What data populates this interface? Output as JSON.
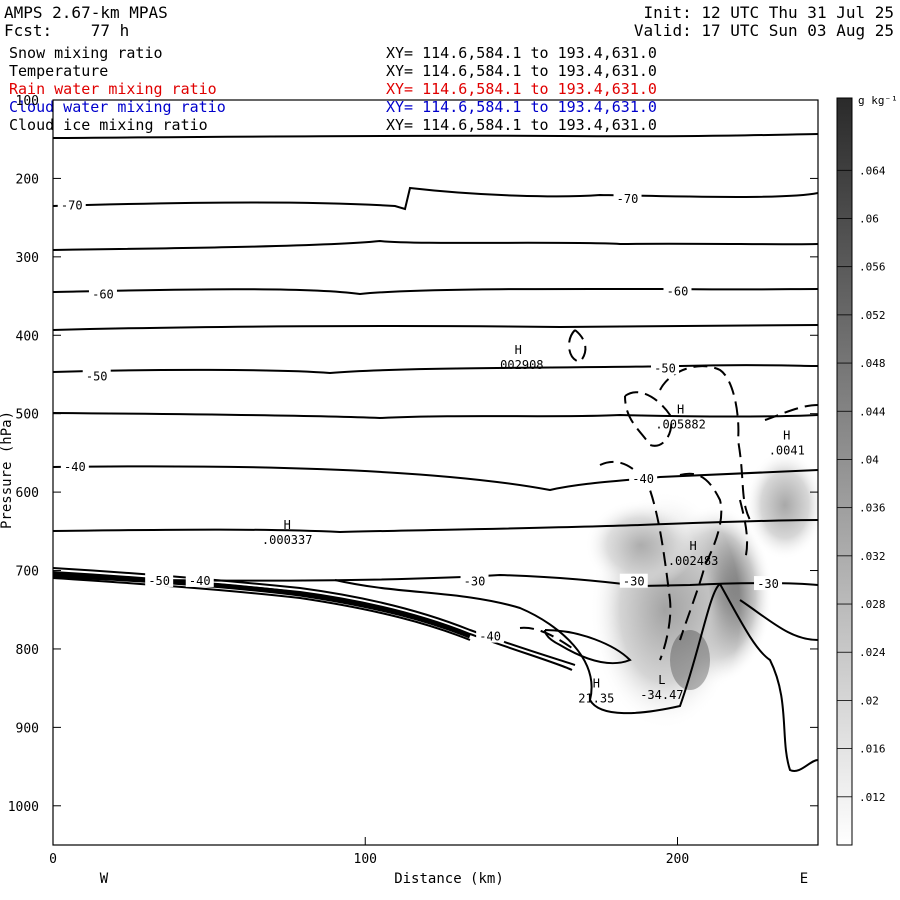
{
  "header": {
    "model": "AMPS 2.67-km MPAS",
    "fcst": "Fcst:    77 h",
    "init": "Init: 12 UTC Thu 31 Jul 25",
    "valid": "Valid: 17 UTC Sun 03 Aug 25"
  },
  "fields": [
    {
      "name": "Snow mixing ratio",
      "xy": "XY= 114.6,584.1 to 193.4,631.0",
      "color": "#000000"
    },
    {
      "name": "Temperature",
      "xy": "XY= 114.6,584.1 to 193.4,631.0",
      "color": "#000000"
    },
    {
      "name": "Rain water mixing ratio",
      "xy": "XY= 114.6,584.1 to 193.4,631.0",
      "color": "#e00000"
    },
    {
      "name": "Cloud water mixing ratio",
      "xy": "XY= 114.6,584.1 to 193.4,631.0",
      "color": "#0000cc"
    },
    {
      "name": "Cloud ice mixing ratio",
      "xy": "XY= 114.6,584.1 to 193.4,631.0",
      "color": "#000000"
    }
  ],
  "chart_data": {
    "type": "cross-section contour",
    "xlabel": "Distance (km)",
    "ylabel": "Pressure (hPa)",
    "xlim": [
      0,
      245
    ],
    "ylim": [
      1050,
      100
    ],
    "xticks": [
      0,
      100,
      200
    ],
    "yticks": [
      100,
      200,
      300,
      400,
      500,
      600,
      700,
      800,
      900,
      1000
    ],
    "west_label": "W",
    "east_label": "E",
    "colorbar": {
      "unit": "g kg⁻¹",
      "ticks": [
        ".012",
        ".016",
        ".02",
        ".024",
        ".028",
        ".032",
        ".036",
        ".04",
        ".044",
        ".048",
        ".052",
        ".056",
        ".06",
        ".064"
      ]
    },
    "temperature_isotherms": [
      {
        "label": "-70",
        "x": 6,
        "p": 233
      },
      {
        "label": "-70",
        "x": 184,
        "p": 225
      },
      {
        "label": "-60",
        "x": 16,
        "p": 347
      },
      {
        "label": "-60",
        "x": 200,
        "p": 343
      },
      {
        "label": "-50",
        "x": 14,
        "p": 451
      },
      {
        "label": "-50",
        "x": 196,
        "p": 441
      },
      {
        "label": "-40",
        "x": 7,
        "p": 567
      },
      {
        "label": "-40",
        "x": 189,
        "p": 582
      },
      {
        "label": "-40",
        "x": 140,
        "p": 783
      },
      {
        "label": "-30",
        "x": 135,
        "p": 713
      },
      {
        "label": "-30",
        "x": 186,
        "p": 713
      },
      {
        "label": "-30",
        "x": 229,
        "p": 716
      },
      {
        "label": "-50",
        "x": 34,
        "p": 712
      },
      {
        "label": "-40",
        "x": 47,
        "p": 712
      }
    ],
    "extrema": [
      {
        "type": "H",
        "value": ".002908",
        "x": 149,
        "p": 424
      },
      {
        "type": "H",
        "value": ".005882",
        "x": 201,
        "p": 500
      },
      {
        "type": "H",
        "value": ".0041",
        "x": 235,
        "p": 533
      },
      {
        "type": "H",
        "value": ".000337",
        "x": 75,
        "p": 647
      },
      {
        "type": "H",
        "value": ".002483",
        "x": 205,
        "p": 674
      },
      {
        "type": "H",
        "value": "21.35",
        "x": 174,
        "p": 849
      },
      {
        "type": "L",
        "value": "-34.47",
        "x": 195,
        "p": 845
      }
    ]
  }
}
